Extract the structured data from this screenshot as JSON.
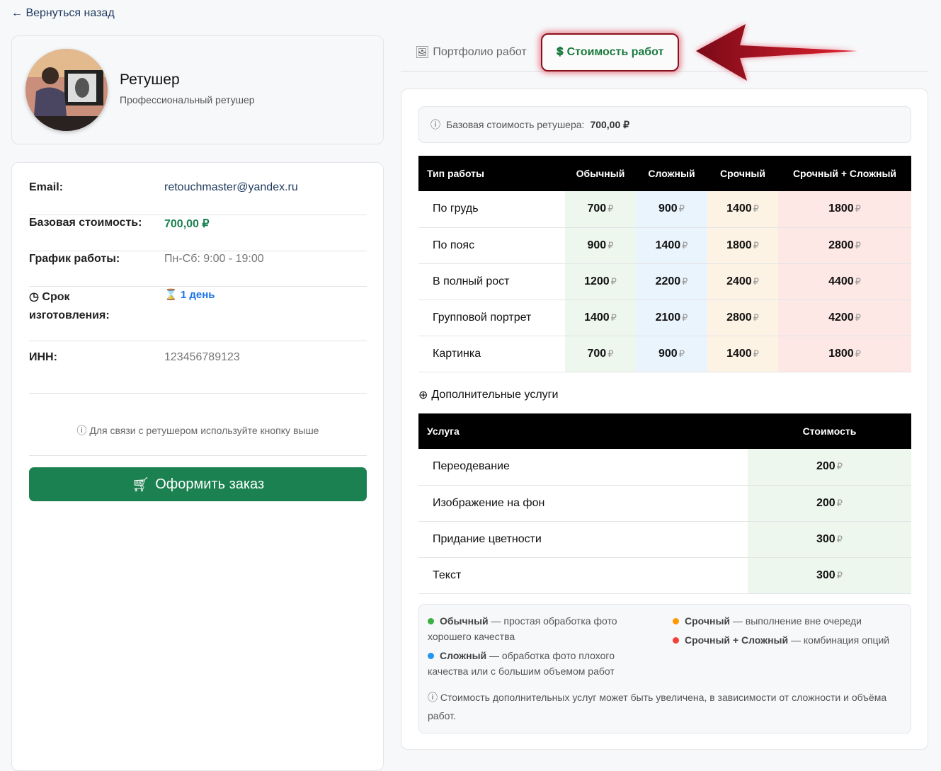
{
  "back_link": "Вернуться назад",
  "profile": {
    "name": "Ретушер",
    "subtitle": "Профессиональный ретушер"
  },
  "info": [
    {
      "label": "Email:",
      "value": "retouchmaster@yandex.ru"
    },
    {
      "label": "Базовая стоимость:",
      "value": "700,00 ₽"
    },
    {
      "label": "График работы:",
      "value": "Пн-Сб: 9:00 - 19:00"
    },
    {
      "label": "Срок изготовления:",
      "value": "1 день"
    },
    {
      "label": "ИНН:",
      "value": "123456789123"
    }
  ],
  "contact_note": "Для связи с ретушером используйте кнопку выше",
  "order_button": "Оформить заказ",
  "tabs": [
    {
      "label": "Портфолио работ",
      "icon": "image-icon"
    },
    {
      "label": "Стоимость работ",
      "icon": "coins-icon",
      "active": true
    }
  ],
  "base_cost": {
    "label": "Базовая стоимость ретушера:",
    "value": "700,00 ₽"
  },
  "currency": "₽",
  "price_table": {
    "headers": [
      "Тип работы",
      "Обычный",
      "Сложный",
      "Срочный",
      "Срочный + Сложный"
    ],
    "rows": [
      [
        "По грудь",
        "700",
        "900",
        "1400",
        "1800"
      ],
      [
        "По пояс",
        "900",
        "1400",
        "1800",
        "2800"
      ],
      [
        "В полный рост",
        "1200",
        "2200",
        "2400",
        "4400"
      ],
      [
        "Групповой портрет",
        "1400",
        "2100",
        "2800",
        "4200"
      ],
      [
        "Картинка",
        "700",
        "900",
        "1400",
        "1800"
      ]
    ]
  },
  "extra": {
    "title": "Дополнительные услуги",
    "headers": [
      "Услуга",
      "Стоимость"
    ],
    "rows": [
      [
        "Переодевание",
        "200"
      ],
      [
        "Изображение на фон",
        "200"
      ],
      [
        "Придание цветности",
        "300"
      ],
      [
        "Текст",
        "300"
      ]
    ]
  },
  "legend": [
    {
      "name": "Обычный",
      "desc": "— простая обработка фото хорошего качества",
      "color": "#3cb043"
    },
    {
      "name": "Сложный",
      "desc": "— обработка фото плохого качества или с большим объемом работ",
      "color": "#2196f3"
    },
    {
      "name": "Срочный",
      "desc": "— выполнение вне очереди",
      "color": "#ff9800"
    },
    {
      "name": "Срочный + Сложный",
      "desc": "— комбинация опций",
      "color": "#f44336"
    }
  ],
  "legend_note": "Стоимость дополнительных услуг может быть увеличена, в зависимости от сложности и объёма работ."
}
